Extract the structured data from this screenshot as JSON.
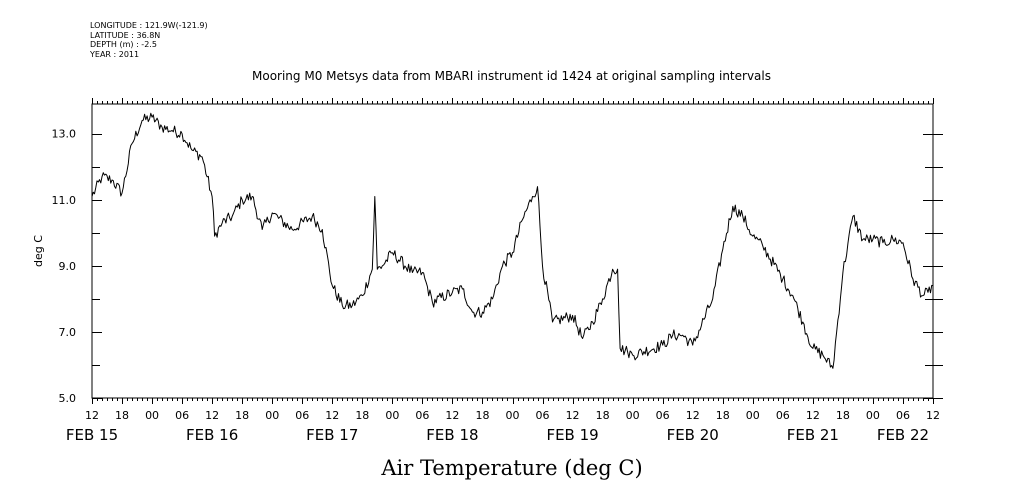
{
  "header": {
    "meta_lines": [
      "LONGITUDE : 121.9W(-121.9)",
      "LATITUDE : 36.8N",
      "DEPTH (m) : -2.5",
      "YEAR : 2011"
    ],
    "title": "Mooring M0 Metsys data from MBARI instrument id 1424 at original sampling intervals"
  },
  "chart_data": {
    "type": "line",
    "title": "Mooring M0 Metsys data from MBARI instrument id 1424 at original sampling intervals",
    "xlabel": "Air Temperature (deg C)",
    "ylabel": "deg C",
    "ylim": [
      5.0,
      13.9
    ],
    "y_ticks": [
      "5.0",
      "7.0",
      "9.0",
      "11.0",
      "13.0"
    ],
    "x_range_hours": [
      "FEB 15 12:00",
      "FEB 22 12:00"
    ],
    "x_hour_ticks": [
      "12",
      "18",
      "00",
      "06",
      "12",
      "18",
      "00",
      "06",
      "12",
      "18",
      "00",
      "06",
      "12",
      "18",
      "00",
      "06",
      "12",
      "18",
      "00",
      "06",
      "12",
      "18",
      "00",
      "06",
      "12",
      "18",
      "00",
      "06",
      "12"
    ],
    "x_day_labels": [
      {
        "label": "FEB 15",
        "time": "FEB 15 12:00"
      },
      {
        "label": "FEB 16",
        "time": "FEB 16 12:00"
      },
      {
        "label": "FEB 17",
        "time": "FEB 17 12:00"
      },
      {
        "label": "FEB 18",
        "time": "FEB 18 12:00"
      },
      {
        "label": "FEB 19",
        "time": "FEB 19 12:00"
      },
      {
        "label": "FEB 20",
        "time": "FEB 20 12:00"
      },
      {
        "label": "FEB 21",
        "time": "FEB 21 12:00"
      },
      {
        "label": "FEB 22",
        "time": "FEB 22 06:00"
      }
    ],
    "grid": false,
    "line_color": "#000000",
    "series": [
      {
        "x": [
          "FEB 15 12:00",
          "FEB 15 14:00",
          "FEB 15 16:00",
          "FEB 15 18:00",
          "FEB 15 20:00",
          "FEB 15 22:00",
          "FEB 16 00:00",
          "FEB 16 02:00",
          "FEB 16 04:00",
          "FEB 16 06:00",
          "FEB 16 08:00",
          "FEB 16 10:00",
          "FEB 16 12:00",
          "FEB 16 12:30",
          "FEB 16 14:00",
          "FEB 16 16:00",
          "FEB 16 18:00",
          "FEB 16 20:00",
          "FEB 16 22:00",
          "FEB 17 00:00",
          "FEB 17 04:00",
          "FEB 17 08:00",
          "FEB 17 10:00",
          "FEB 17 12:00",
          "FEB 17 14:00",
          "FEB 17 16:00",
          "FEB 17 18:00",
          "FEB 17 20:00",
          "FEB 17 20:30",
          "FEB 17 21:00",
          "FEB 17 22:00",
          "FEB 18 00:00",
          "FEB 18 04:00",
          "FEB 18 06:00",
          "FEB 18 08:00",
          "FEB 18 12:00",
          "FEB 18 14:00",
          "FEB 18 16:00",
          "FEB 18 18:00",
          "FEB 18 20:00",
          "FEB 18 22:00",
          "FEB 19 00:00",
          "FEB 19 02:00",
          "FEB 19 04:00",
          "FEB 19 05:00",
          "FEB 19 06:00",
          "FEB 19 08:00",
          "FEB 19 12:00",
          "FEB 19 14:00",
          "FEB 19 16:00",
          "FEB 19 18:00",
          "FEB 19 20:00",
          "FEB 19 21:00",
          "FEB 19 21:30",
          "FEB 19 23:00",
          "FEB 20 00:00",
          "FEB 20 06:00",
          "FEB 20 08:00",
          "FEB 20 10:00",
          "FEB 20 12:00",
          "FEB 20 16:00",
          "FEB 20 18:00",
          "FEB 20 20:00",
          "FEB 20 22:00",
          "FEB 21 00:00",
          "FEB 21 02:00",
          "FEB 21 06:00",
          "FEB 21 08:00",
          "FEB 21 10:00",
          "FEB 21 12:00",
          "FEB 21 14:00",
          "FEB 21 16:00",
          "FEB 21 18:00",
          "FEB 21 20:00",
          "FEB 21 22:00",
          "FEB 22 00:00",
          "FEB 22 02:00",
          "FEB 22 04:00",
          "FEB 22 06:00",
          "FEB 22 08:00",
          "FEB 22 10:00",
          "FEB 22 11:00",
          "FEB 22 12:00"
        ],
        "y": [
          11.1,
          11.7,
          11.6,
          11.2,
          12.7,
          13.4,
          13.5,
          13.2,
          13.1,
          13.0,
          12.5,
          12.3,
          11.1,
          9.9,
          10.3,
          10.5,
          11.0,
          11.1,
          10.1,
          10.6,
          10.1,
          10.5,
          10.1,
          8.4,
          7.8,
          7.8,
          8.1,
          8.9,
          11.1,
          8.9,
          9.0,
          9.4,
          8.8,
          8.8,
          7.9,
          8.2,
          8.3,
          7.6,
          7.6,
          8.0,
          9.0,
          9.4,
          10.4,
          11.1,
          11.4,
          9.0,
          7.3,
          7.5,
          6.8,
          7.3,
          8.0,
          8.9,
          8.9,
          6.5,
          6.4,
          6.3,
          6.6,
          6.9,
          6.9,
          6.6,
          8.0,
          9.5,
          10.8,
          10.5,
          9.9,
          9.6,
          8.6,
          8.1,
          7.3,
          6.5,
          6.3,
          5.9,
          8.8,
          10.5,
          9.8,
          9.8,
          9.7,
          9.8,
          9.7,
          8.6,
          8.1,
          8.2,
          8.4
        ]
      }
    ]
  }
}
